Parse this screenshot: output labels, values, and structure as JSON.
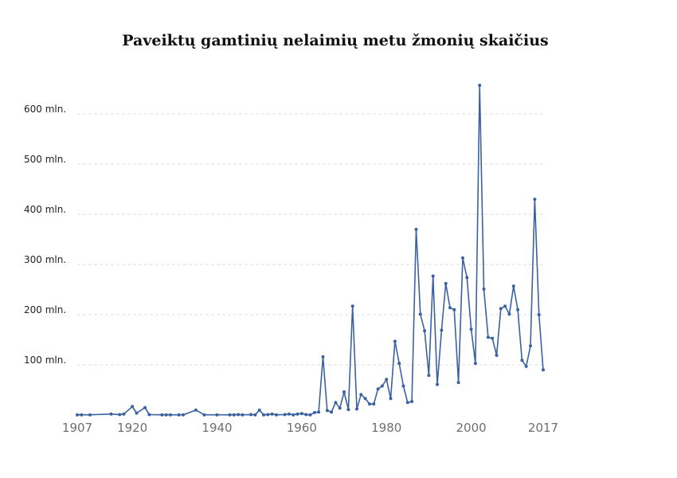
{
  "chart_data": {
    "type": "line",
    "title": "Paveiktų gamtinių nelaimių metu žmonių skaičius",
    "xlabel": "",
    "ylabel": "",
    "series_color": "#3b62a0",
    "grid": "horizontal-dashed",
    "xlim": [
      1907,
      2017
    ],
    "ylim": [
      0,
      660
    ],
    "y_ticks": [
      {
        "value": 100,
        "label": "100 mln."
      },
      {
        "value": 200,
        "label": "200 mln."
      },
      {
        "value": 300,
        "label": "300 mln."
      },
      {
        "value": 400,
        "label": "400 mln."
      },
      {
        "value": 500,
        "label": "500 mln."
      },
      {
        "value": 600,
        "label": "600 mln."
      }
    ],
    "x_ticks": [
      {
        "value": 1907,
        "label": "1907"
      },
      {
        "value": 1920,
        "label": "1920"
      },
      {
        "value": 1940,
        "label": "1940"
      },
      {
        "value": 1960,
        "label": "1960"
      },
      {
        "value": 1980,
        "label": "1980"
      },
      {
        "value": 2000,
        "label": "2000"
      },
      {
        "value": 2017,
        "label": "2017"
      }
    ],
    "x": [
      1907,
      1908,
      1910,
      1915,
      1917,
      1918,
      1920,
      1921,
      1923,
      1924,
      1927,
      1928,
      1929,
      1931,
      1932,
      1935,
      1937,
      1940,
      1943,
      1944,
      1945,
      1946,
      1948,
      1949,
      1950,
      1951,
      1952,
      1953,
      1954,
      1956,
      1957,
      1958,
      1959,
      1960,
      1961,
      1962,
      1963,
      1964,
      1965,
      1966,
      1967,
      1968,
      1969,
      1970,
      1971,
      1972,
      1973,
      1974,
      1975,
      1976,
      1977,
      1978,
      1979,
      1980,
      1981,
      1982,
      1983,
      1984,
      1985,
      1986,
      1987,
      1988,
      1989,
      1990,
      1991,
      1992,
      1993,
      1994,
      1995,
      1996,
      1997,
      1998,
      1999,
      2000,
      2001,
      2002,
      2003,
      2004,
      2005,
      2006,
      2007,
      2008,
      2009,
      2010,
      2011,
      2012,
      2013,
      2014,
      2015,
      2016,
      2017
    ],
    "values": [
      0.5,
      0.5,
      0.5,
      2,
      1,
      2,
      17,
      4,
      15,
      1,
      0.5,
      0.5,
      0.5,
      0.5,
      0.5,
      10,
      0.5,
      0.5,
      0.5,
      0.5,
      1,
      0.5,
      1,
      0.5,
      10,
      0.5,
      1,
      2,
      0.5,
      1,
      2,
      0.5,
      2,
      3,
      1,
      0.5,
      5,
      6,
      116,
      9,
      6,
      25,
      14,
      46,
      11,
      217,
      12,
      41,
      33,
      22,
      22,
      52,
      58,
      71,
      33,
      147,
      103,
      58,
      25,
      27,
      370,
      201,
      168,
      79,
      277,
      61,
      169,
      262,
      214,
      210,
      65,
      313,
      274,
      171,
      103,
      657,
      251,
      155,
      153,
      119,
      212,
      217,
      201,
      257,
      210,
      109,
      97,
      138,
      430,
      200,
      90
    ]
  }
}
